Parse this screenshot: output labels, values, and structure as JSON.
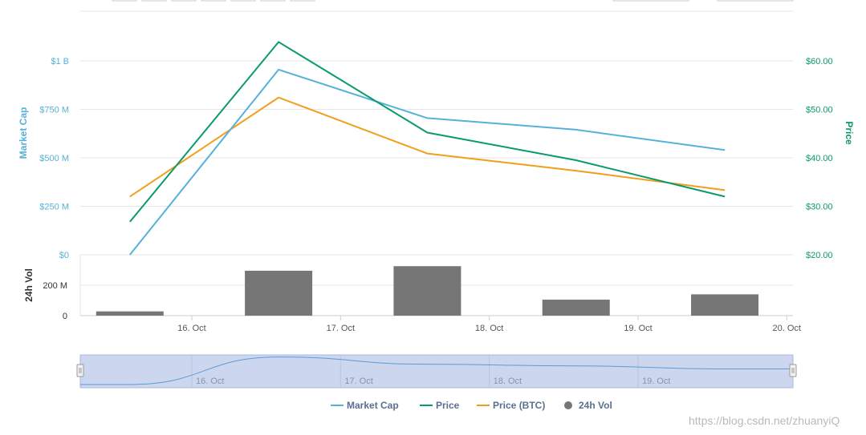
{
  "colors": {
    "market_cap": "#56b1d9",
    "price": "#0a9a6d",
    "price_btc": "#f19e1c",
    "volume": "#767676",
    "grid": "#e6e6e6",
    "navigator_fill": "#ccd6ee",
    "navigator_line": "#5c9bd6"
  },
  "chart_data": [
    {
      "type": "line",
      "x": [
        "2019-10-15T14:00",
        "2019-10-16T14:00",
        "2019-10-17T14:00",
        "2019-10-18T14:00",
        "2019-10-19T14:00"
      ],
      "y_left": {
        "label": "Market Cap",
        "ticks": [
          "$0",
          "$250 M",
          "$500 M",
          "$750 M",
          "$1 B"
        ],
        "range": [
          0,
          1000000000
        ]
      },
      "y_right": {
        "label": "Price",
        "ticks": [
          "$20.00",
          "$30.00",
          "$40.00",
          "$50.00",
          "$60.00"
        ],
        "range": [
          20,
          60
        ]
      },
      "series": [
        {
          "name": "Market Cap",
          "axis": "left",
          "values": [
            0,
            955000000,
            705000000,
            645000000,
            540000000
          ]
        },
        {
          "name": "Price",
          "axis": "right",
          "values": [
            26.8,
            63.9,
            45.2,
            39.5,
            32.0
          ]
        },
        {
          "name": "Price (BTC)",
          "axis": "hidden",
          "values": [
            0.00042,
            0.00088,
            0.00062,
            0.00054,
            0.00045
          ]
        }
      ],
      "grid": true
    },
    {
      "type": "bar",
      "x": [
        "2019-10-15T14:00",
        "2019-10-16T14:00",
        "2019-10-17T14:00",
        "2019-10-18T14:00",
        "2019-10-19T14:00"
      ],
      "y": {
        "label": "24h Vol",
        "ticks": [
          "0",
          "200 M"
        ],
        "range": [
          0,
          400000000
        ]
      },
      "series": [
        {
          "name": "24h Vol",
          "values": [
            28000000,
            295000000,
            325000000,
            105000000,
            140000000
          ]
        }
      ],
      "x_ticks": [
        "16. Oct",
        "17. Oct",
        "18. Oct",
        "19. Oct",
        "20. Oct"
      ]
    }
  ],
  "navigator": {
    "ticks": [
      "16. Oct",
      "17. Oct",
      "18. Oct",
      "19. Oct"
    ]
  },
  "legend": {
    "items": [
      {
        "label": "Market Cap",
        "kind": "line"
      },
      {
        "label": "Price",
        "kind": "line"
      },
      {
        "label": "Price (BTC)",
        "kind": "line"
      },
      {
        "label": "24h Vol",
        "kind": "dot"
      }
    ]
  },
  "watermark": "https://blog.csdn.net/zhuanyiQ"
}
